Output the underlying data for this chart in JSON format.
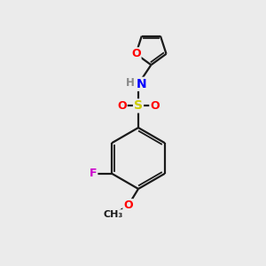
{
  "bg_color": "#ebebeb",
  "bond_color": "#1a1a1a",
  "atom_colors": {
    "O": "#ff0000",
    "N": "#0000ff",
    "S": "#cccc00",
    "F": "#cc00cc",
    "H": "#888888"
  },
  "figsize": [
    3.0,
    3.0
  ],
  "dpi": 100
}
